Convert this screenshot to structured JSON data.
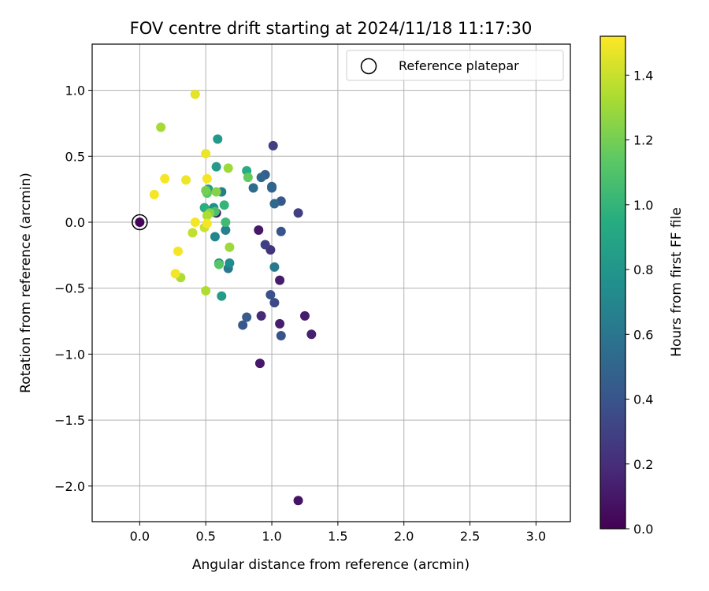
{
  "chart_data": {
    "type": "scatter",
    "title": "FOV centre drift starting at 2024/11/18 11:17:30",
    "xlabel": "Angular distance from reference (arcmin)",
    "ylabel": "Rotation from reference (arcmin)",
    "xlim": [
      -0.36,
      3.26
    ],
    "ylim": [
      -2.27,
      1.35
    ],
    "xticks": [
      0.0,
      0.5,
      1.0,
      1.5,
      2.0,
      2.5,
      3.0
    ],
    "xtick_labels": [
      "0.0",
      "0.5",
      "1.0",
      "1.5",
      "2.0",
      "2.5",
      "3.0"
    ],
    "yticks": [
      -2.0,
      -1.5,
      -1.0,
      -0.5,
      0.0,
      0.5,
      1.0
    ],
    "ytick_labels": [
      "−2.0",
      "−1.5",
      "−1.0",
      "−0.5",
      "0.0",
      "0.5",
      "1.0"
    ],
    "grid": true,
    "legend": {
      "placement": "top-right",
      "entries": [
        "Reference platepar"
      ]
    },
    "colorbar": {
      "label": "Hours from first FF file",
      "colormap": "viridis",
      "range": [
        0.0,
        1.52
      ],
      "ticks": [
        0.0,
        0.2,
        0.4,
        0.6,
        0.8,
        1.0,
        1.2,
        1.4
      ],
      "tick_labels": [
        "0.0",
        "0.2",
        "0.4",
        "0.6",
        "0.8",
        "1.0",
        "1.2",
        "1.4"
      ]
    },
    "reference_point": {
      "x": 0.0,
      "y": 0.0
    },
    "points": [
      {
        "x": 0.0,
        "y": 0.0,
        "c": 0.02
      },
      {
        "x": 1.2,
        "y": -2.11,
        "c": 0.08
      },
      {
        "x": 0.91,
        "y": -1.07,
        "c": 0.1
      },
      {
        "x": 1.25,
        "y": -0.71,
        "c": 0.12
      },
      {
        "x": 1.3,
        "y": -0.85,
        "c": 0.14
      },
      {
        "x": 1.06,
        "y": -0.77,
        "c": 0.13
      },
      {
        "x": 1.06,
        "y": -0.44,
        "c": 0.12
      },
      {
        "x": 0.92,
        "y": -0.71,
        "c": 0.18
      },
      {
        "x": 0.9,
        "y": -0.06,
        "c": 0.1
      },
      {
        "x": 0.58,
        "y": 0.07,
        "c": 0.08
      },
      {
        "x": 0.99,
        "y": -0.21,
        "c": 0.22
      },
      {
        "x": 1.2,
        "y": 0.07,
        "c": 0.28
      },
      {
        "x": 1.01,
        "y": 0.58,
        "c": 0.28
      },
      {
        "x": 0.95,
        "y": -0.17,
        "c": 0.3
      },
      {
        "x": 1.02,
        "y": -0.61,
        "c": 0.34
      },
      {
        "x": 0.99,
        "y": -0.55,
        "c": 0.38
      },
      {
        "x": 1.07,
        "y": -0.86,
        "c": 0.4
      },
      {
        "x": 1.07,
        "y": -0.07,
        "c": 0.4
      },
      {
        "x": 0.78,
        "y": -0.78,
        "c": 0.42
      },
      {
        "x": 0.81,
        "y": -0.72,
        "c": 0.44
      },
      {
        "x": 1.07,
        "y": 0.16,
        "c": 0.42
      },
      {
        "x": 0.95,
        "y": 0.36,
        "c": 0.46
      },
      {
        "x": 1.0,
        "y": 0.27,
        "c": 0.48
      },
      {
        "x": 0.92,
        "y": 0.34,
        "c": 0.5
      },
      {
        "x": 1.0,
        "y": 0.26,
        "c": 0.5
      },
      {
        "x": 1.02,
        "y": 0.14,
        "c": 0.52
      },
      {
        "x": 0.86,
        "y": 0.26,
        "c": 0.54
      },
      {
        "x": 1.02,
        "y": -0.34,
        "c": 0.62
      },
      {
        "x": 0.67,
        "y": -0.35,
        "c": 0.62
      },
      {
        "x": 0.62,
        "y": 0.23,
        "c": 0.64
      },
      {
        "x": 0.65,
        "y": -0.06,
        "c": 0.66
      },
      {
        "x": 0.57,
        "y": -0.11,
        "c": 0.7
      },
      {
        "x": 0.6,
        "y": -0.31,
        "c": 0.72
      },
      {
        "x": 0.68,
        "y": -0.31,
        "c": 0.74
      },
      {
        "x": 0.56,
        "y": 0.11,
        "c": 0.76
      },
      {
        "x": 0.59,
        "y": 0.63,
        "c": 0.82
      },
      {
        "x": 0.58,
        "y": 0.42,
        "c": 0.84
      },
      {
        "x": 0.62,
        "y": -0.56,
        "c": 0.84
      },
      {
        "x": 0.52,
        "y": 0.25,
        "c": 0.86
      },
      {
        "x": 0.81,
        "y": 0.39,
        "c": 0.94
      },
      {
        "x": 0.49,
        "y": 0.11,
        "c": 0.96
      },
      {
        "x": 0.64,
        "y": 0.13,
        "c": 1.0
      },
      {
        "x": 0.65,
        "y": 0.0,
        "c": 1.04
      },
      {
        "x": 0.57,
        "y": 0.08,
        "c": 1.08
      },
      {
        "x": 0.6,
        "y": -0.32,
        "c": 1.12
      },
      {
        "x": 0.51,
        "y": 0.22,
        "c": 1.14
      },
      {
        "x": 0.82,
        "y": 0.34,
        "c": 1.16
      },
      {
        "x": 0.5,
        "y": 0.24,
        "c": 1.2
      },
      {
        "x": 0.58,
        "y": 0.23,
        "c": 1.24
      },
      {
        "x": 0.53,
        "y": 0.07,
        "c": 1.24
      },
      {
        "x": 0.68,
        "y": -0.19,
        "c": 1.3
      },
      {
        "x": 0.67,
        "y": 0.41,
        "c": 1.3
      },
      {
        "x": 0.16,
        "y": 0.72,
        "c": 1.32
      },
      {
        "x": 0.51,
        "y": 0.05,
        "c": 1.34
      },
      {
        "x": 0.5,
        "y": -0.52,
        "c": 1.34
      },
      {
        "x": 0.31,
        "y": -0.42,
        "c": 1.34
      },
      {
        "x": 0.4,
        "y": -0.08,
        "c": 1.38
      },
      {
        "x": 0.49,
        "y": -0.04,
        "c": 1.4
      },
      {
        "x": 0.42,
        "y": 0.97,
        "c": 1.46
      },
      {
        "x": 0.5,
        "y": 0.52,
        "c": 1.48
      },
      {
        "x": 0.35,
        "y": 0.32,
        "c": 1.48
      },
      {
        "x": 0.19,
        "y": 0.33,
        "c": 1.5
      },
      {
        "x": 0.51,
        "y": 0.33,
        "c": 1.5
      },
      {
        "x": 0.11,
        "y": 0.21,
        "c": 1.5
      },
      {
        "x": 0.42,
        "y": 0.0,
        "c": 1.5
      },
      {
        "x": 0.51,
        "y": -0.01,
        "c": 1.5
      },
      {
        "x": 0.29,
        "y": -0.22,
        "c": 1.5
      },
      {
        "x": 0.27,
        "y": -0.39,
        "c": 1.5
      }
    ]
  }
}
